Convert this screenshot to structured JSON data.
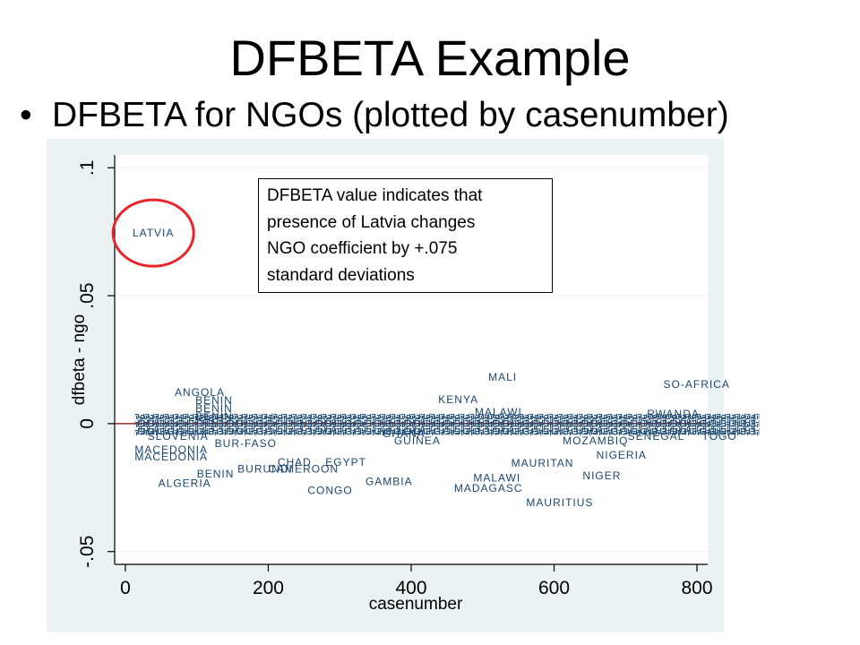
{
  "slide": {
    "title": "DFBETA Example",
    "bullet_marker": "•",
    "bullet_text": "DFBETA for NGOs (plotted by casenumber)"
  },
  "annotation": {
    "lines": [
      "DFBETA value indicates that",
      "presence of Latvia changes",
      "NGO coefficient by +.075",
      "standard deviations"
    ]
  },
  "colors": {
    "panel": "#eaf2f3",
    "plot_area": "#ffffff",
    "label": "#1a476f",
    "highlight": "#e8262a",
    "reference_line": "#8e2a2a",
    "axis": "#000000",
    "grid": "#e9eff2"
  },
  "chart_data": {
    "type": "scatter",
    "marker": "labels only",
    "xlabel": "casenumber",
    "ylabel": "dfbeta - ngo",
    "xlim": [
      -15,
      815
    ],
    "ylim": [
      -0.055,
      0.105
    ],
    "xticks": [
      0,
      200,
      400,
      600,
      800
    ],
    "xtick_labels": [
      "0",
      "200",
      "400",
      "600",
      "800"
    ],
    "yticks": [
      -0.05,
      0,
      0.05,
      0.1
    ],
    "ytick_labels": [
      "-.05",
      "0",
      ".05",
      ".1"
    ],
    "grid": true,
    "reference_line_y": 0,
    "highlight": {
      "label": "LATVIA",
      "shape": "circle"
    },
    "dense_cluster_near_zero": true,
    "points": [
      {
        "label": "LATVIA",
        "x": 10,
        "y": 0.0745
      },
      {
        "label": "ANGOLA",
        "x": 69,
        "y": 0.0122
      },
      {
        "label": "BENIN",
        "x": 98,
        "y": 0.0091
      },
      {
        "label": "BENIN",
        "x": 98,
        "y": 0.006
      },
      {
        "label": "BENIN",
        "x": 98,
        "y": 0.0028
      },
      {
        "label": "MALI",
        "x": 508,
        "y": 0.0182
      },
      {
        "label": "SO-AFRICA",
        "x": 753,
        "y": 0.0154
      },
      {
        "label": "KENYA",
        "x": 438,
        "y": 0.0094
      },
      {
        "label": "MALAWI",
        "x": 489,
        "y": 0.0045
      },
      {
        "label": "RWANDA",
        "x": 730,
        "y": 0.0038
      },
      {
        "label": "SLOVENIA",
        "x": 31,
        "y": -0.0049
      },
      {
        "label": "GHANA",
        "x": 360,
        "y": -0.0038
      },
      {
        "label": "GUINEA",
        "x": 376,
        "y": -0.0066
      },
      {
        "label": "BUR-FASO",
        "x": 125,
        "y": -0.0077
      },
      {
        "label": "MACEDONIA",
        "x": 13,
        "y": -0.0101
      },
      {
        "label": "MACEDONIA",
        "x": 13,
        "y": -0.0129
      },
      {
        "label": "MOZAMBIQ",
        "x": 612,
        "y": -0.0066
      },
      {
        "label": "SENEGAL",
        "x": 703,
        "y": -0.0049
      },
      {
        "label": "TOGO",
        "x": 807,
        "y": -0.005
      },
      {
        "label": "NIGERIA",
        "x": 659,
        "y": -0.0122
      },
      {
        "label": "MAURITAN",
        "x": 540,
        "y": -0.0154
      },
      {
        "label": "NIGER",
        "x": 640,
        "y": -0.0203
      },
      {
        "label": "MALAWI",
        "x": 487,
        "y": -0.0213
      },
      {
        "label": "MADAGASC",
        "x": 460,
        "y": -0.0252
      },
      {
        "label": "MAURITIUS",
        "x": 561,
        "y": -0.0308
      },
      {
        "label": "GAMBIA",
        "x": 336,
        "y": -0.0227
      },
      {
        "label": "CHAD",
        "x": 213,
        "y": -0.015
      },
      {
        "label": "EGYPT",
        "x": 280,
        "y": -0.015
      },
      {
        "label": "BURUNDI",
        "x": 157,
        "y": -0.0178
      },
      {
        "label": "CAMEROON",
        "x": 200,
        "y": -0.0178
      },
      {
        "label": "BENIN",
        "x": 100,
        "y": -0.0196
      },
      {
        "label": "ALGERIA",
        "x": 46,
        "y": -0.0234
      },
      {
        "label": "CONGO",
        "x": 255,
        "y": -0.0262
      }
    ]
  }
}
